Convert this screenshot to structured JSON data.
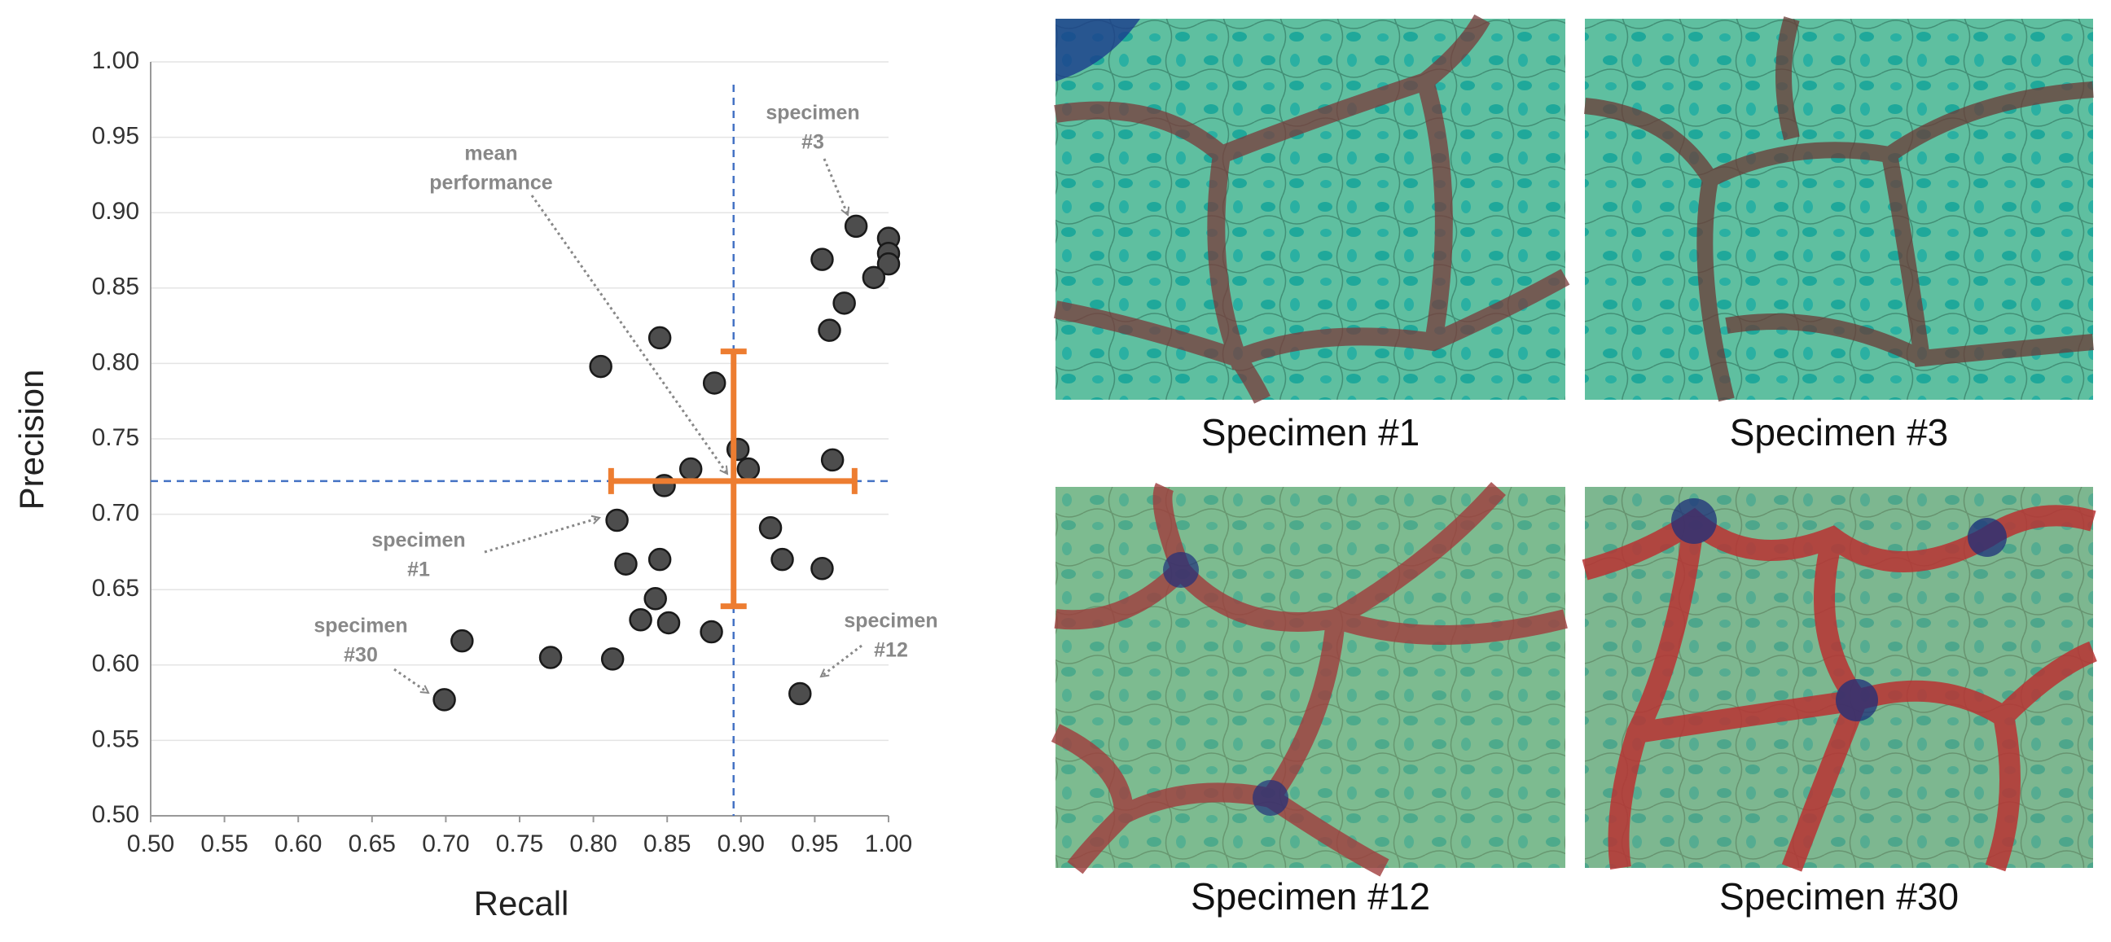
{
  "chart_data": {
    "type": "scatter",
    "x_label": "Recall",
    "y_label": "Precision",
    "xlim": [
      0.5,
      1.0
    ],
    "xticks": [
      {
        "value": 0.5,
        "label": "0.50"
      },
      0.55,
      {
        "value": 0.6,
        "label": "0.60"
      },
      0.65,
      {
        "value": 0.7,
        "label": "0.70"
      },
      0.75,
      {
        "value": 0.8,
        "label": "0.80"
      },
      0.85,
      {
        "value": 0.9,
        "label": "0.90"
      },
      0.95,
      {
        "value": 1.0,
        "label": "1.00"
      }
    ],
    "ylim": [
      0.5,
      1.0
    ],
    "yticks": [
      {
        "value": 0.5,
        "label": "0.50"
      },
      0.55,
      {
        "value": 0.6,
        "label": "0.60"
      },
      0.65,
      {
        "value": 0.7,
        "label": "0.70"
      },
      0.75,
      {
        "value": 0.8,
        "label": "0.80"
      },
      0.85,
      {
        "value": 0.9,
        "label": "0.90"
      },
      0.95,
      {
        "value": 1.0,
        "label": "1.00"
      }
    ],
    "grid": true,
    "color": "#4d4d4d",
    "x": [
      0.978,
      1.0,
      1.0,
      1.0,
      0.99,
      0.955,
      0.97,
      0.96,
      0.962,
      0.955,
      0.94,
      0.92,
      0.928,
      0.905,
      0.898,
      0.845,
      0.805,
      0.882,
      0.866,
      0.848,
      0.816,
      0.822,
      0.845,
      0.842,
      0.832,
      0.851,
      0.88,
      0.813,
      0.771,
      0.711,
      0.699
    ],
    "values": [
      0.891,
      0.883,
      0.873,
      0.866,
      0.857,
      0.869,
      0.84,
      0.822,
      0.736,
      0.664,
      0.581,
      0.691,
      0.67,
      0.73,
      0.743,
      0.817,
      0.798,
      0.787,
      0.73,
      0.719,
      0.696,
      0.667,
      0.67,
      0.644,
      0.63,
      0.628,
      0.622,
      0.604,
      0.605,
      0.616,
      0.577
    ],
    "mean": {
      "x": 0.895,
      "y": 0.722,
      "x_range": [
        0.812,
        0.977
      ],
      "y_range": [
        0.639,
        0.808
      ],
      "color": "#ed7d31",
      "line_color": "#4472c4"
    },
    "annotations": [
      [
        "mean",
        "performance"
      ],
      [
        "specimen",
        "#3"
      ],
      [
        "specimen",
        "#1"
      ],
      [
        "specimen",
        "#30"
      ],
      [
        "specimen",
        "#12"
      ]
    ]
  },
  "images": [
    {
      "caption": "Specimen #1"
    },
    {
      "caption": "Specimen #3"
    },
    {
      "caption": "Specimen #12"
    },
    {
      "caption": "Specimen #30"
    }
  ]
}
